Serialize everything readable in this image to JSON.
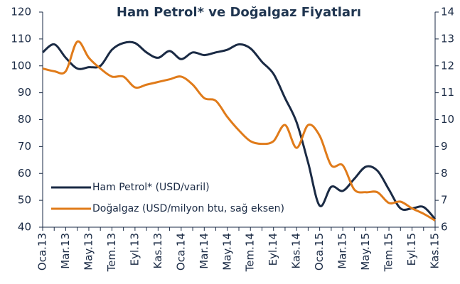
{
  "chart_data": {
    "type": "line",
    "title": "Ham Petrol* ve Doğalgaz Fiyatları",
    "categories": [
      "Oca.13",
      null,
      "Mar.13",
      null,
      "May.13",
      null,
      "Tem.13",
      null,
      "Eyl.13",
      null,
      "Kas.13",
      null,
      "Oca.14",
      null,
      "Mar.14",
      null,
      "May.14",
      null,
      "Tem.14",
      null,
      "Eyl.14",
      null,
      "Kas.14",
      null,
      "Oca.15",
      null,
      "Mar.15",
      null,
      "May.15",
      null,
      "Tem.15",
      null,
      "Eyl.15",
      null,
      "Kas.15"
    ],
    "series": [
      {
        "name": "Ham Petrol* (USD/varil)",
        "color": "#1a2a44",
        "values": [
          105,
          108,
          103,
          99,
          99.5,
          100,
          106,
          108.5,
          108.5,
          105,
          103,
          105.5,
          102.5,
          105,
          104,
          105,
          106,
          108,
          106.5,
          101.5,
          97,
          88,
          79,
          64,
          48,
          55,
          53.5,
          58,
          62.5,
          61,
          54,
          47,
          47,
          47.5,
          43
        ]
      },
      {
        "name": "Doğalgaz (USD/milyon btu, sağ eksen)",
        "color": "#e07b1a",
        "axis": "y2",
        "values": [
          11.9,
          11.8,
          11.8,
          12.9,
          12.3,
          11.9,
          11.6,
          11.6,
          11.2,
          11.3,
          11.4,
          11.5,
          11.6,
          11.3,
          10.8,
          10.7,
          10.1,
          9.6,
          9.2,
          9.1,
          9.2,
          9.8,
          8.95,
          9.8,
          9.4,
          8.3,
          8.3,
          7.4,
          7.3,
          7.3,
          6.9,
          6.95,
          6.7,
          6.5,
          6.25
        ]
      }
    ],
    "ylim": [
      40,
      120
    ],
    "yticks": [
      40,
      50,
      60,
      70,
      80,
      90,
      100,
      110,
      120
    ],
    "y2lim": [
      6,
      14
    ],
    "y2ticks": [
      6,
      7,
      8,
      9,
      10,
      11,
      12,
      13,
      14
    ],
    "legend": "lower left",
    "grid": false
  }
}
